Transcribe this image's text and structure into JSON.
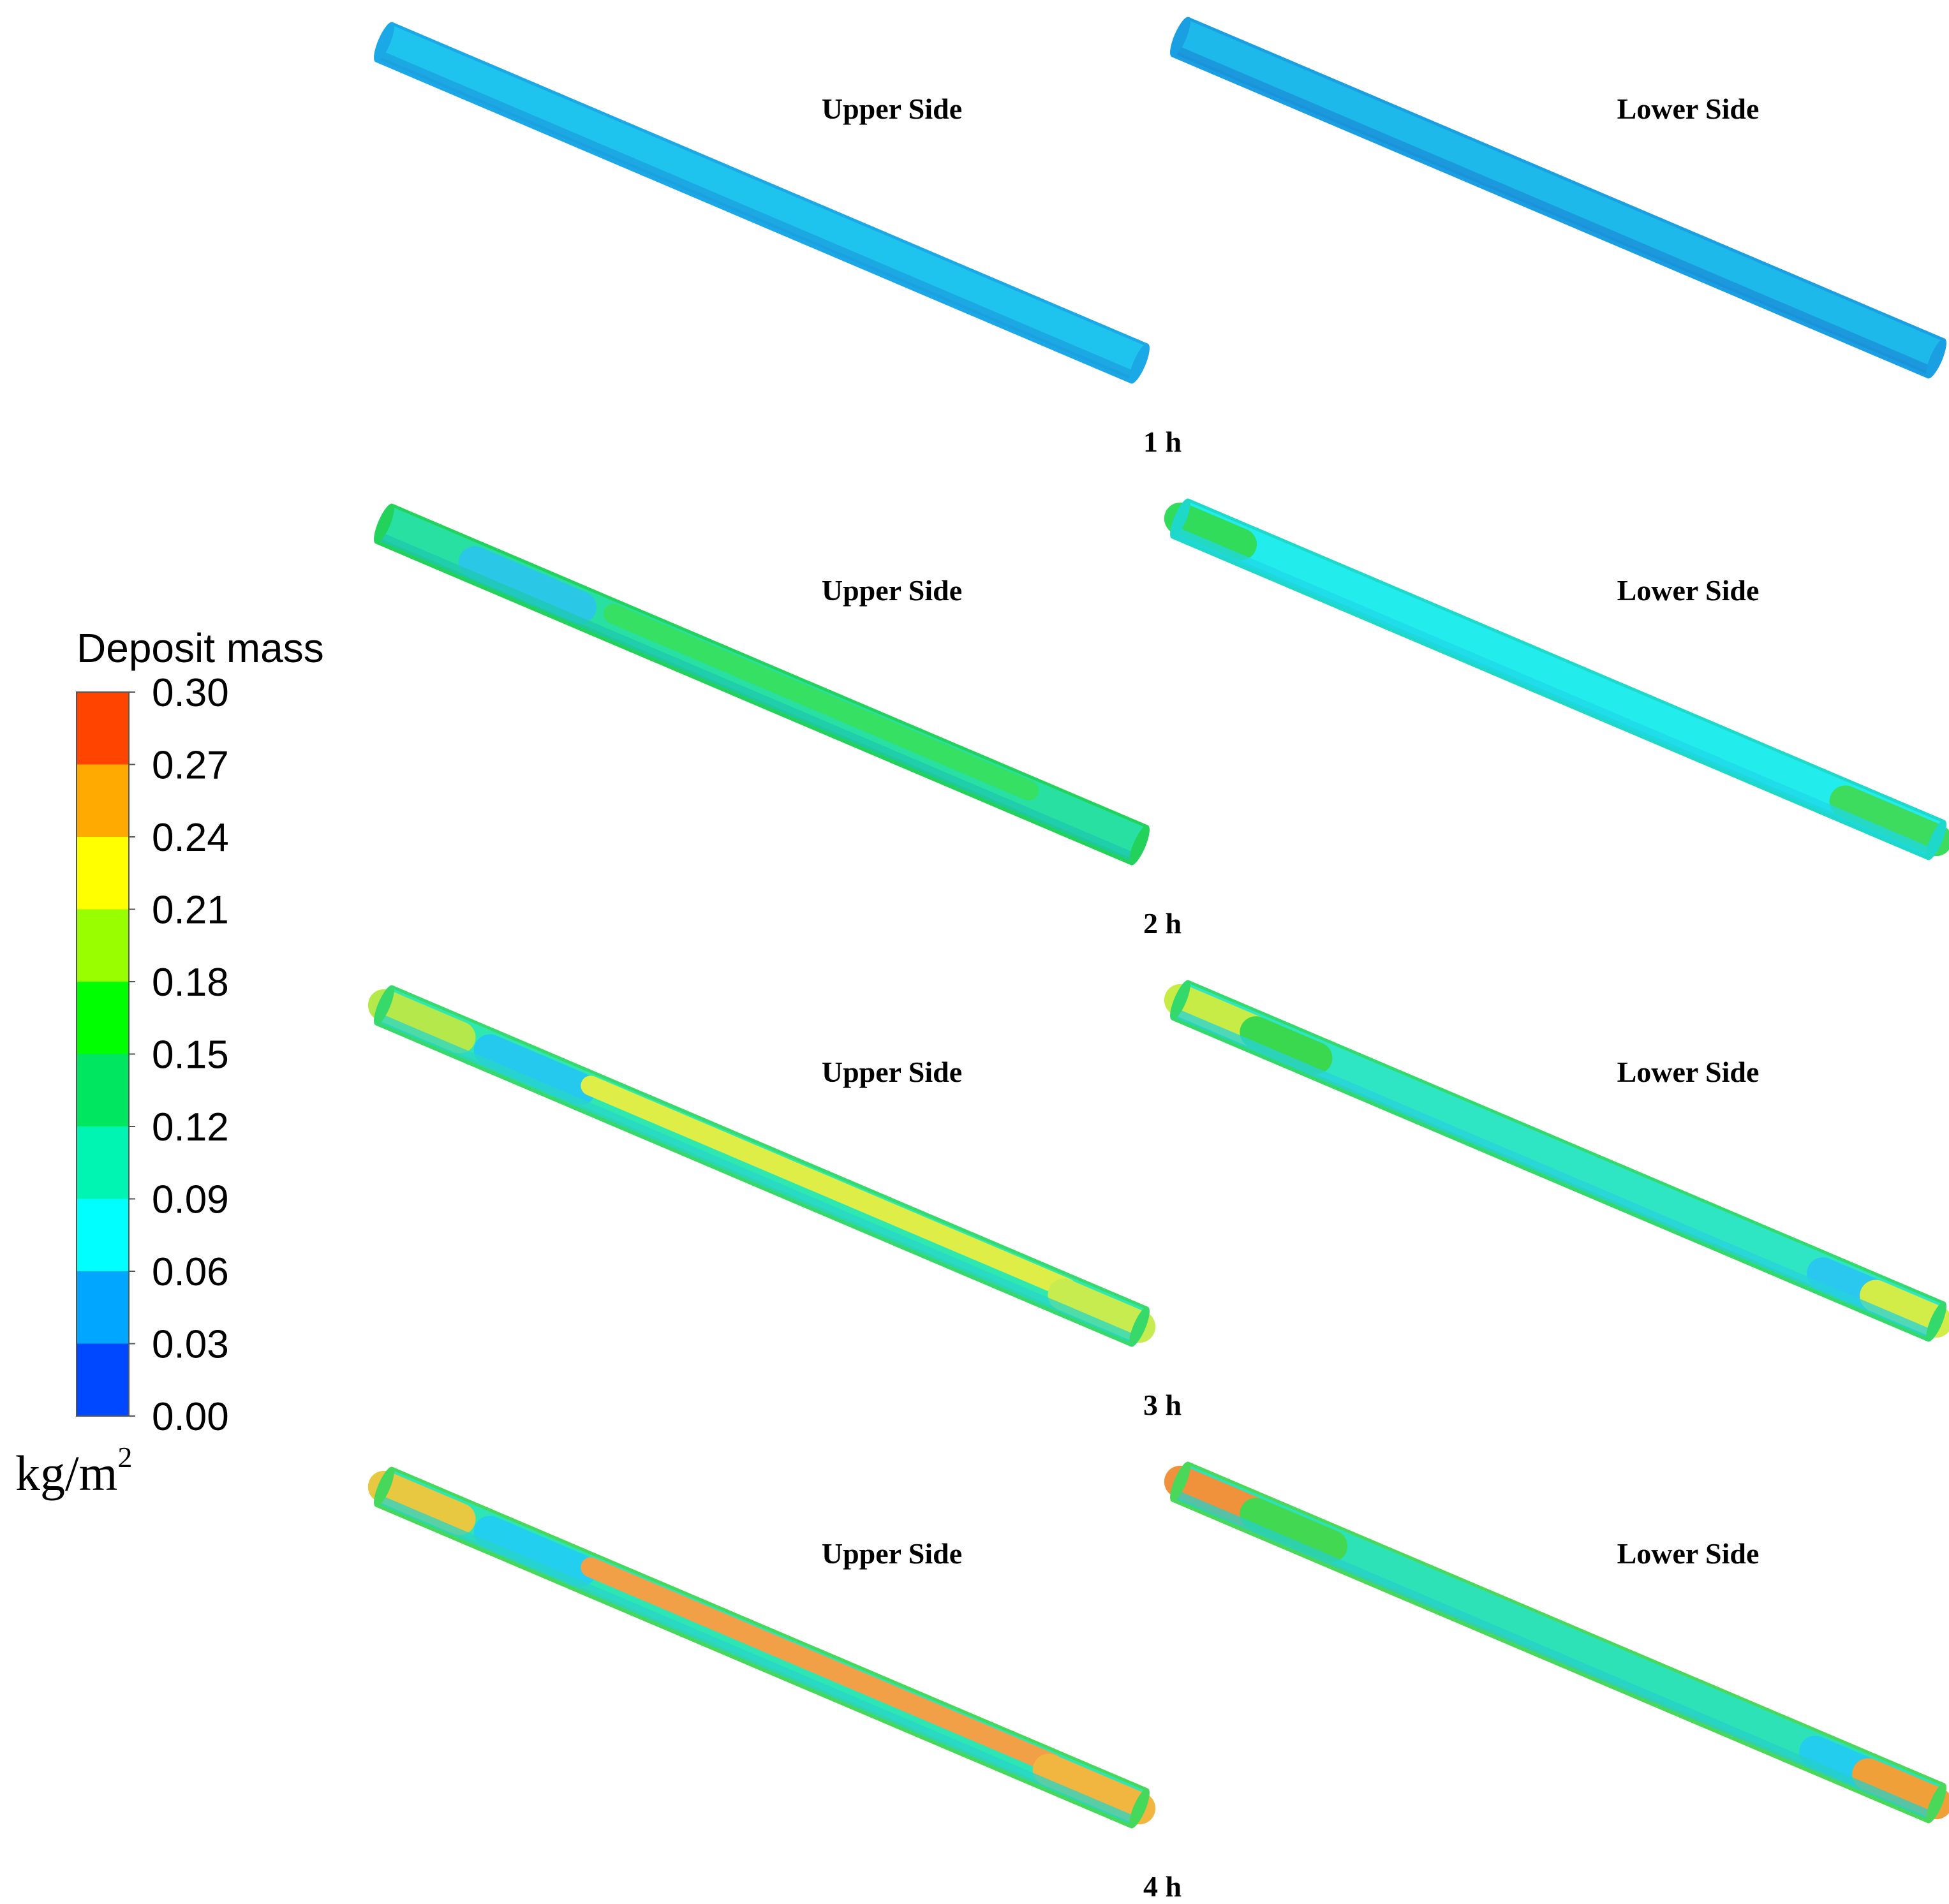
{
  "legend": {
    "title": "Deposit mass",
    "unit_base": "kg/m",
    "unit_exponent": "2",
    "ticks": [
      "0.30",
      "0.27",
      "0.24",
      "0.21",
      "0.18",
      "0.15",
      "0.12",
      "0.09",
      "0.06",
      "0.03",
      "0.00"
    ],
    "bands": [
      {
        "from": 0.0,
        "to": 0.03,
        "color": "#0048ff"
      },
      {
        "from": 0.03,
        "to": 0.06,
        "color": "#00a6ff"
      },
      {
        "from": 0.06,
        "to": 0.09,
        "color": "#00ffff"
      },
      {
        "from": 0.09,
        "to": 0.12,
        "color": "#00f5b2"
      },
      {
        "from": 0.12,
        "to": 0.15,
        "color": "#00e660"
      },
      {
        "from": 0.15,
        "to": 0.18,
        "color": "#00ff00"
      },
      {
        "from": 0.18,
        "to": 0.21,
        "color": "#99ff00"
      },
      {
        "from": 0.21,
        "to": 0.24,
        "color": "#ffff00"
      },
      {
        "from": 0.24,
        "to": 0.27,
        "color": "#ffaa00"
      },
      {
        "from": 0.27,
        "to": 0.3,
        "color": "#ff4400"
      }
    ]
  },
  "rows": [
    {
      "time_label": "1 h",
      "panels": [
        {
          "side_label": "Upper Side",
          "body_color": "#1fc4ee",
          "stripe_color": "#1c9fdf",
          "edge_color": "#1aa8e6",
          "patches": []
        },
        {
          "side_label": "Lower Side",
          "body_color": "#1db9ea",
          "stripe_color": "#1b8fd8",
          "edge_color": "#1aa0e2",
          "patches": []
        }
      ]
    },
    {
      "time_label": "2 h",
      "panels": [
        {
          "side_label": "Upper Side",
          "body_color": "#28e0a2",
          "stripe_color": "#1fc8b0",
          "edge_color": "#22d25a",
          "patches": [
            {
              "start": 0.12,
              "end": 0.26,
              "color": "#2ac8e6"
            },
            {
              "start": 0.3,
              "end": 0.85,
              "color": "#35e062",
              "band": "top"
            }
          ]
        },
        {
          "side_label": "Lower Side",
          "body_color": "#22ecec",
          "stripe_color": "#1fd9e8",
          "edge_color": "#1ed8c9",
          "patches": [
            {
              "start": 0.0,
              "end": 0.08,
              "color": "#30dc5a"
            },
            {
              "start": 0.88,
              "end": 1.0,
              "color": "#3ddc5e"
            }
          ]
        }
      ]
    },
    {
      "time_label": "3 h",
      "panels": [
        {
          "side_label": "Upper Side",
          "body_color": "#2ee8b0",
          "stripe_color": "#27d7c8",
          "edge_color": "#36d96a",
          "patches": [
            {
              "start": 0.0,
              "end": 0.1,
              "color": "#b5e84a"
            },
            {
              "start": 0.14,
              "end": 0.26,
              "color": "#26c9ee"
            },
            {
              "start": 0.27,
              "end": 0.9,
              "color": "#dfee46",
              "band": "top"
            },
            {
              "start": 0.9,
              "end": 1.0,
              "color": "#c6ec4f"
            }
          ]
        },
        {
          "side_label": "Lower Side",
          "body_color": "#2ee6c4",
          "stripe_color": "#26d3dc",
          "edge_color": "#33d96a",
          "patches": [
            {
              "start": 0.0,
              "end": 0.1,
              "color": "#c7ec46"
            },
            {
              "start": 0.1,
              "end": 0.18,
              "color": "#3ad84e"
            },
            {
              "start": 0.85,
              "end": 0.92,
              "color": "#2ac8ee"
            },
            {
              "start": 0.92,
              "end": 1.0,
              "color": "#d2ec48"
            }
          ]
        }
      ]
    },
    {
      "time_label": "4 h",
      "panels": [
        {
          "side_label": "Upper Side",
          "body_color": "#2ee6b4",
          "stripe_color": "#28d5c8",
          "edge_color": "#46d85a",
          "patches": [
            {
              "start": 0.0,
              "end": 0.1,
              "color": "#e8c840"
            },
            {
              "start": 0.14,
              "end": 0.26,
              "color": "#22cfee"
            },
            {
              "start": 0.27,
              "end": 0.88,
              "color": "#f2a048",
              "band": "top"
            },
            {
              "start": 0.88,
              "end": 1.0,
              "color": "#f0b640"
            }
          ]
        },
        {
          "side_label": "Lower Side",
          "body_color": "#2ee2b8",
          "stripe_color": "#26d0c8",
          "edge_color": "#4ad85a",
          "patches": [
            {
              "start": 0.0,
              "end": 0.1,
              "color": "#f0923c"
            },
            {
              "start": 0.1,
              "end": 0.2,
              "color": "#42d852"
            },
            {
              "start": 0.84,
              "end": 0.91,
              "color": "#22cdee"
            },
            {
              "start": 0.91,
              "end": 1.0,
              "color": "#f0a038"
            }
          ]
        }
      ]
    }
  ]
}
